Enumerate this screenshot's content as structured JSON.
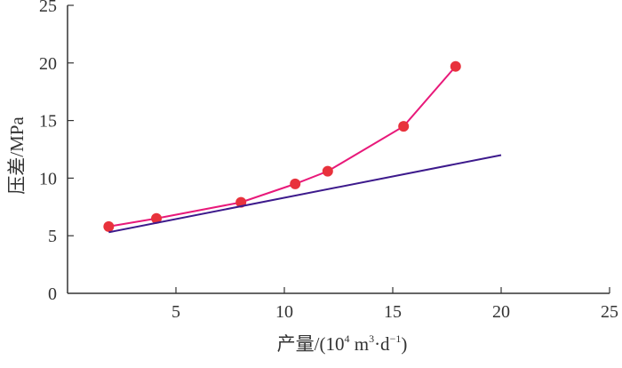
{
  "chart_data": {
    "type": "line",
    "xlabel": "产量/(10⁴ m³·d⁻¹)",
    "xlabel_parts": {
      "prefix": "产量/(10",
      "exp1": "4",
      "mid1": " m",
      "exp2": "3",
      "mid2": "·d",
      "exp3": "−1",
      "suffix": ")"
    },
    "ylabel": "压差/MPa",
    "xlim": [
      0,
      25
    ],
    "ylim": [
      0,
      25
    ],
    "xticks": [
      5,
      10,
      15,
      20,
      25
    ],
    "yticks": [
      0,
      5,
      10,
      15,
      20,
      25
    ],
    "grid": false,
    "series": [
      {
        "color": "#e8197a",
        "marker_color": "#e8323c",
        "marker": "circle",
        "x": [
          1.9,
          4.1,
          8.0,
          10.5,
          12.0,
          15.5,
          17.9
        ],
        "y": [
          5.8,
          6.5,
          7.9,
          9.5,
          10.6,
          14.5,
          19.7
        ]
      },
      {
        "color": "#3d1a8c",
        "marker": "none",
        "x": [
          1.9,
          20.0
        ],
        "y": [
          5.3,
          12.0
        ]
      }
    ]
  }
}
